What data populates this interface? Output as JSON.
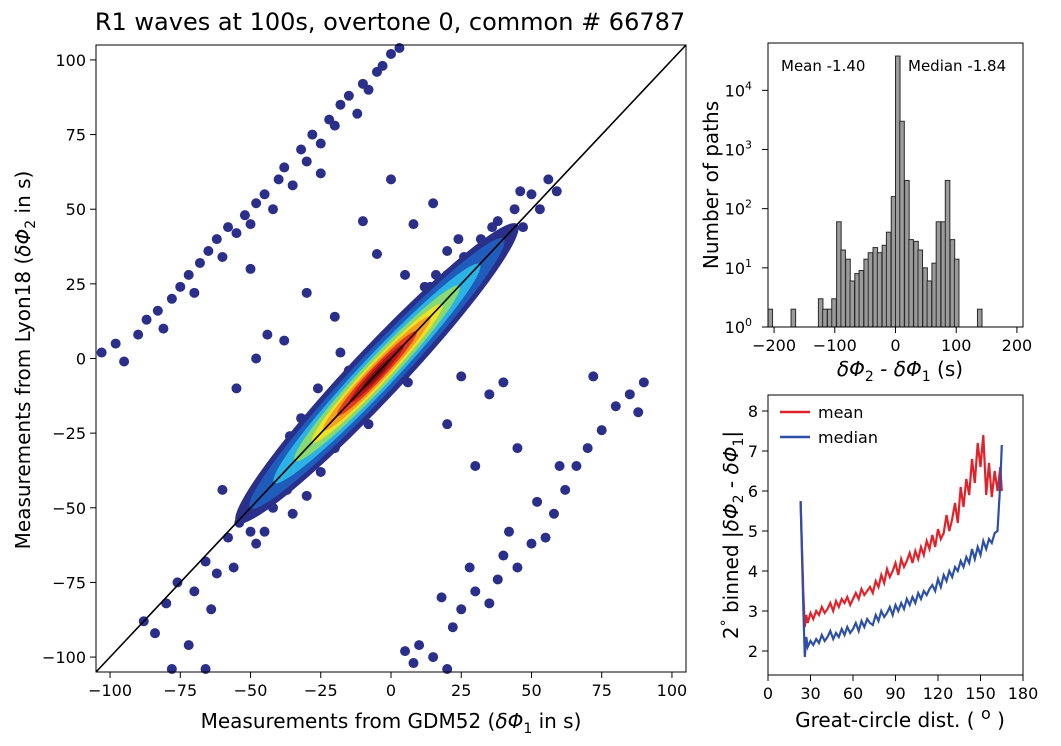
{
  "chart_data": [
    {
      "type": "scatter",
      "title": "R1 waves at 100s, overtone 0, common # 66787",
      "xlabel_prefix": "Measurements from GDM52 (",
      "xlabel_var": "δΦ",
      "xlabel_sub": "1",
      "xlabel_suffix": " in s)",
      "ylabel_prefix": "Measurements from Lyon18 (",
      "ylabel_var": "δΦ",
      "ylabel_sub": "2",
      "ylabel_suffix": " in s)",
      "xlim": [
        -105,
        105
      ],
      "ylim": [
        -105,
        105
      ],
      "xticks": [
        -100,
        -75,
        -50,
        -25,
        0,
        25,
        50,
        75,
        100
      ],
      "yticks": [
        -100,
        -75,
        -50,
        -25,
        0,
        25,
        50,
        75,
        100
      ],
      "xtick_labels": [
        "−100",
        "−75",
        "−50",
        "−25",
        "0",
        "25",
        "50",
        "75",
        "100"
      ],
      "ytick_labels": [
        "−100",
        "−75",
        "−50",
        "−25",
        "0",
        "25",
        "50",
        "75",
        "100"
      ],
      "one_to_one_line": true,
      "colormap": "jet (density)",
      "points": [
        [
          -103,
          2
        ],
        [
          -98,
          5
        ],
        [
          -95,
          -1
        ],
        [
          -90,
          8
        ],
        [
          -87,
          13
        ],
        [
          -83,
          16
        ],
        [
          -81,
          10
        ],
        [
          -78,
          20
        ],
        [
          -75,
          24
        ],
        [
          -72,
          28
        ],
        [
          -70,
          22
        ],
        [
          -68,
          32
        ],
        [
          -65,
          36
        ],
        [
          -62,
          40
        ],
        [
          -60,
          34
        ],
        [
          -58,
          44
        ],
        [
          -55,
          42
        ],
        [
          -52,
          48
        ],
        [
          -50,
          45
        ],
        [
          -48,
          52
        ],
        [
          -45,
          55
        ],
        [
          -42,
          50
        ],
        [
          -40,
          60
        ],
        [
          -38,
          64
        ],
        [
          -35,
          58
        ],
        [
          -32,
          70
        ],
        [
          -30,
          66
        ],
        [
          -28,
          75
        ],
        [
          -25,
          72
        ],
        [
          -22,
          80
        ],
        [
          -20,
          78
        ],
        [
          -18,
          85
        ],
        [
          -15,
          88
        ],
        [
          -12,
          82
        ],
        [
          -10,
          92
        ],
        [
          -8,
          90
        ],
        [
          -5,
          96
        ],
        [
          -3,
          98
        ],
        [
          0,
          102
        ],
        [
          3,
          104
        ],
        [
          -88,
          -88
        ],
        [
          -84,
          -92
        ],
        [
          -80,
          -82
        ],
        [
          -76,
          -75
        ],
        [
          -70,
          -78
        ],
        [
          -66,
          -68
        ],
        [
          -62,
          -72
        ],
        [
          -58,
          -60
        ],
        [
          -54,
          -55
        ],
        [
          -50,
          -58
        ],
        [
          -46,
          -44
        ],
        [
          -42,
          -50
        ],
        [
          -40,
          -36
        ],
        [
          -37,
          -44
        ],
        [
          -34,
          -30
        ],
        [
          -30,
          -24
        ],
        [
          -28,
          -36
        ],
        [
          -25,
          -22
        ],
        [
          -22,
          -14
        ],
        [
          -20,
          -28
        ],
        [
          -17,
          -8
        ],
        [
          -14,
          -20
        ],
        [
          -12,
          -2
        ],
        [
          -9,
          -12
        ],
        [
          -6,
          4
        ],
        [
          -4,
          -6
        ],
        [
          -2,
          8
        ],
        [
          2,
          -2
        ],
        [
          4,
          12
        ],
        [
          7,
          2
        ],
        [
          9,
          18
        ],
        [
          12,
          8
        ],
        [
          14,
          24
        ],
        [
          17,
          14
        ],
        [
          20,
          28
        ],
        [
          23,
          20
        ],
        [
          26,
          34
        ],
        [
          29,
          26
        ],
        [
          32,
          40
        ],
        [
          35,
          32
        ],
        [
          38,
          46
        ],
        [
          41,
          40
        ],
        [
          44,
          50
        ],
        [
          47,
          44
        ],
        [
          50,
          55
        ],
        [
          53,
          50
        ],
        [
          56,
          60
        ],
        [
          59,
          56
        ],
        [
          -64,
          -84
        ],
        [
          -56,
          -70
        ],
        [
          -48,
          -62
        ],
        [
          -44,
          -40
        ],
        [
          -36,
          -26
        ],
        [
          -26,
          -10
        ],
        [
          -18,
          2
        ],
        [
          6,
          -8
        ],
        [
          16,
          28
        ],
        [
          24,
          40
        ],
        [
          36,
          44
        ],
        [
          46,
          56
        ],
        [
          -78,
          -104
        ],
        [
          -72,
          -96
        ],
        [
          -66,
          -104
        ],
        [
          5,
          -98
        ],
        [
          10,
          -96
        ],
        [
          15,
          -100
        ],
        [
          8,
          -102
        ],
        [
          20,
          -104
        ],
        [
          18,
          -80
        ],
        [
          25,
          -84
        ],
        [
          22,
          -90
        ],
        [
          30,
          -78
        ],
        [
          35,
          -82
        ],
        [
          28,
          -70
        ],
        [
          40,
          -66
        ],
        [
          45,
          -70
        ],
        [
          50,
          -62
        ],
        [
          55,
          -60
        ],
        [
          58,
          -52
        ],
        [
          62,
          -44
        ],
        [
          66,
          -36
        ],
        [
          70,
          -30
        ],
        [
          75,
          -24
        ],
        [
          80,
          -16
        ],
        [
          85,
          -12
        ],
        [
          88,
          -18
        ],
        [
          90,
          -8
        ],
        [
          72,
          -6
        ],
        [
          60,
          -36
        ],
        [
          52,
          -48
        ],
        [
          42,
          -58
        ],
        [
          38,
          -74
        ],
        [
          -12,
          -15
        ],
        [
          -30,
          -46
        ],
        [
          -20,
          -30
        ],
        [
          -40,
          -40
        ],
        [
          -35,
          -52
        ],
        [
          -45,
          -58
        ],
        [
          -32,
          -20
        ],
        [
          -25,
          -38
        ],
        [
          -15,
          -4
        ],
        [
          -8,
          -22
        ],
        [
          5,
          28
        ],
        [
          12,
          24
        ],
        [
          20,
          36
        ],
        [
          30,
          32
        ],
        [
          35,
          -12
        ],
        [
          40,
          -8
        ],
        [
          25,
          -6
        ],
        [
          -60,
          -44
        ],
        [
          -55,
          -10
        ],
        [
          -48,
          0
        ],
        [
          -44,
          8
        ],
        [
          -30,
          22
        ],
        [
          -20,
          14
        ],
        [
          -50,
          30
        ],
        [
          -38,
          6
        ],
        [
          -5,
          35
        ],
        [
          8,
          45
        ],
        [
          15,
          52
        ],
        [
          -10,
          46
        ],
        [
          0,
          60
        ],
        [
          20,
          -22
        ],
        [
          30,
          -36
        ],
        [
          45,
          -30
        ],
        [
          -25,
          62
        ]
      ],
      "density_colors": [
        "#2a2f8a",
        "#1f5fbf",
        "#2bb7e6",
        "#8ddb6a",
        "#f5e21f",
        "#f59a1f",
        "#e23520",
        "#b0141a",
        "#7a0a10"
      ]
    },
    {
      "type": "bar",
      "xlabel_prefix": "δΦ",
      "xlabel_sub1": "2",
      "xlabel_mid": " - δΦ",
      "xlabel_sub2": "1",
      "xlabel_suffix": " (s)",
      "ylabel": "Number of paths",
      "ylog": true,
      "annotation_mean": "Mean -1.40",
      "annotation_median": "Median -1.84",
      "xticks": [
        -200,
        -100,
        0,
        100,
        200
      ],
      "xtick_labels": [
        "−200",
        "−100",
        "0",
        "100",
        "200"
      ],
      "ytick_bases": [
        "10",
        "10",
        "10",
        "10",
        "10"
      ],
      "ytick_exps": [
        "0",
        "1",
        "2",
        "3",
        "4"
      ],
      "xlim": [
        -210,
        210
      ],
      "ylim_exp": [
        0,
        4.8
      ],
      "bin_width": 7.5,
      "bins": [
        [
          -210,
          2
        ],
        [
          -172,
          2
        ],
        [
          -127,
          3
        ],
        [
          -120,
          2
        ],
        [
          -112,
          2
        ],
        [
          -105,
          3
        ],
        [
          -97,
          60
        ],
        [
          -90,
          20
        ],
        [
          -82,
          14
        ],
        [
          -75,
          6
        ],
        [
          -67,
          8
        ],
        [
          -60,
          9
        ],
        [
          -52,
          14
        ],
        [
          -45,
          18
        ],
        [
          -37,
          22
        ],
        [
          -30,
          18
        ],
        [
          -22,
          24
        ],
        [
          -15,
          40
        ],
        [
          -7,
          160
        ],
        [
          0,
          38000
        ],
        [
          7,
          3000
        ],
        [
          15,
          300
        ],
        [
          22,
          30
        ],
        [
          30,
          28
        ],
        [
          37,
          20
        ],
        [
          45,
          10
        ],
        [
          52,
          6
        ],
        [
          60,
          12
        ],
        [
          67,
          60
        ],
        [
          75,
          60
        ],
        [
          82,
          300
        ],
        [
          90,
          30
        ],
        [
          97,
          14
        ],
        [
          135,
          2
        ]
      ],
      "bar_fill": "#9b9b9b",
      "bar_edge": "#2a2a2a"
    },
    {
      "type": "line",
      "ylabel_prefix": "2",
      "ylabel_deg": "°",
      "ylabel_mid": " binned  |",
      "ylabel_var1": "δΦ",
      "ylabel_sub1": "2",
      "ylabel_dash": " - ",
      "ylabel_var2": "δΦ",
      "ylabel_sub2": "1",
      "ylabel_end": "|",
      "xlabel_prefix": "Great-circle dist. ( ",
      "xlabel_sym": "o",
      "xlabel_suffix": " )",
      "xlim": [
        0,
        180
      ],
      "ylim": [
        1.4,
        8.4
      ],
      "xticks": [
        0,
        30,
        60,
        90,
        120,
        150,
        180
      ],
      "xtick_labels": [
        "0",
        "30",
        "60",
        "90",
        "120",
        "150",
        "180"
      ],
      "yticks": [
        2,
        3,
        4,
        5,
        6,
        7,
        8
      ],
      "ytick_labels": [
        "2",
        "3",
        "4",
        "5",
        "6",
        "7",
        "8"
      ],
      "legend_position": "upper-left",
      "series": [
        {
          "name": "mean",
          "color": "#e0232a",
          "x": [
            23,
            25,
            26,
            27,
            28,
            30,
            32,
            34,
            36,
            38,
            40,
            42,
            44,
            46,
            48,
            50,
            52,
            54,
            56,
            58,
            60,
            62,
            64,
            66,
            68,
            70,
            72,
            74,
            76,
            78,
            80,
            82,
            84,
            86,
            88,
            90,
            92,
            94,
            96,
            98,
            100,
            102,
            104,
            106,
            108,
            110,
            112,
            114,
            116,
            118,
            120,
            122,
            124,
            126,
            128,
            130,
            132,
            134,
            136,
            138,
            140,
            142,
            144,
            146,
            148,
            150,
            152,
            154,
            156,
            158,
            160,
            162,
            164,
            165
          ],
          "y": [
            5.75,
            3.4,
            2.6,
            2.9,
            2.7,
            2.95,
            2.8,
            3.0,
            2.9,
            3.1,
            2.95,
            3.05,
            3.2,
            3.0,
            3.25,
            3.1,
            3.3,
            3.2,
            3.35,
            3.15,
            3.3,
            3.45,
            3.3,
            3.55,
            3.4,
            3.5,
            3.6,
            3.45,
            3.75,
            3.6,
            3.9,
            3.7,
            4.05,
            3.85,
            4.0,
            4.2,
            3.9,
            4.3,
            4.1,
            4.25,
            4.45,
            4.2,
            4.5,
            4.3,
            4.6,
            4.4,
            4.75,
            4.55,
            4.9,
            4.6,
            5.05,
            4.8,
            4.95,
            5.4,
            5.0,
            5.3,
            5.7,
            5.2,
            6.1,
            5.6,
            6.3,
            5.9,
            6.8,
            6.2,
            7.2,
            6.6,
            7.4,
            5.9,
            6.7,
            5.85,
            6.5,
            6.0,
            6.6,
            6.0
          ]
        },
        {
          "name": "median",
          "color": "#2d4fa8",
          "x": [
            23,
            25,
            26,
            27,
            28,
            30,
            32,
            34,
            36,
            38,
            40,
            42,
            44,
            46,
            48,
            50,
            52,
            54,
            56,
            58,
            60,
            62,
            64,
            66,
            68,
            70,
            72,
            74,
            76,
            78,
            80,
            82,
            84,
            86,
            88,
            90,
            92,
            94,
            96,
            98,
            100,
            102,
            104,
            106,
            108,
            110,
            112,
            114,
            116,
            118,
            120,
            122,
            124,
            126,
            128,
            130,
            132,
            134,
            136,
            138,
            140,
            142,
            144,
            146,
            148,
            150,
            152,
            154,
            156,
            158,
            160,
            162,
            164,
            165
          ],
          "y": [
            5.75,
            3.0,
            1.85,
            2.35,
            2.1,
            2.25,
            2.15,
            2.3,
            2.2,
            2.4,
            2.25,
            2.35,
            2.5,
            2.3,
            2.45,
            2.35,
            2.55,
            2.4,
            2.6,
            2.45,
            2.55,
            2.7,
            2.5,
            2.75,
            2.6,
            2.8,
            2.7,
            2.65,
            2.9,
            2.75,
            3.0,
            2.85,
            2.95,
            3.1,
            2.9,
            3.15,
            3.0,
            3.2,
            3.05,
            3.3,
            3.15,
            3.35,
            3.2,
            3.45,
            3.3,
            3.5,
            3.4,
            3.55,
            3.65,
            3.5,
            3.8,
            3.6,
            3.9,
            3.75,
            4.0,
            3.85,
            4.1,
            4.0,
            4.25,
            4.1,
            4.35,
            4.2,
            4.55,
            4.3,
            4.6,
            4.4,
            4.75,
            4.55,
            4.8,
            4.7,
            4.95,
            5.0,
            6.2,
            7.15
          ]
        }
      ]
    }
  ]
}
